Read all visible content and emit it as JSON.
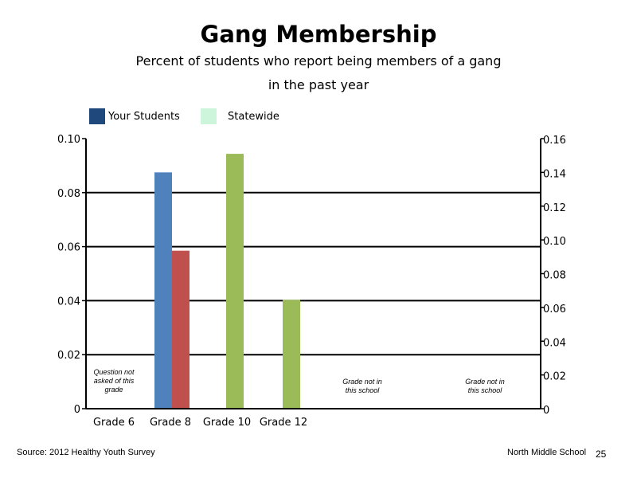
{
  "header": {
    "title": "Gang Membership",
    "subtitle_line1": "Percent of students who report being members of a gang",
    "subtitle_line2": "in the past year"
  },
  "legend": [
    {
      "label": "Your Students",
      "color": "#1f497d"
    },
    {
      "label": "Statewide",
      "color": "#ccf5dc"
    }
  ],
  "chart_data": {
    "type": "bar",
    "title": "Gang Membership",
    "categories": [
      "Grade 6",
      "Grade 8",
      "Grade 10",
      "Grade 12",
      "",
      ""
    ],
    "y_left": {
      "range": [
        0,
        0.1
      ],
      "ticks": [
        "0",
        "0.02",
        "0.04",
        "0.06",
        "0.08",
        "0.10"
      ]
    },
    "y_right": {
      "range": [
        0,
        0.16
      ],
      "ticks": [
        "0",
        "0.02",
        "0.04",
        "0.06",
        "0.08",
        "0.10",
        "0.12",
        "0.14",
        "0.16"
      ]
    },
    "gridlines": [
      0.02,
      0.04,
      0.06,
      0.08
    ],
    "bars": [
      {
        "category": "Grade 8",
        "axis": "left",
        "value": 0.0875,
        "color": "#4f81bd"
      },
      {
        "category": "Grade 8",
        "axis": "left",
        "value": 0.0585,
        "color": "#c0504d"
      },
      {
        "category": "Grade 10",
        "axis": "right",
        "value": 0.151,
        "color": "#9bbb59"
      },
      {
        "category": "Grade 12",
        "axis": "right",
        "value": 0.0645,
        "color": "#9bbb59"
      }
    ],
    "notes": [
      {
        "category_index": 0,
        "lines": [
          "Question not",
          "asked of this",
          "grade"
        ]
      },
      {
        "category_index": 4,
        "lines": [
          "Grade not in",
          "this school"
        ]
      },
      {
        "category_index": 5,
        "lines": [
          "Grade not in",
          "this school"
        ]
      }
    ]
  },
  "footer": {
    "source": "Source: 2012 Healthy Youth Survey",
    "school": "North Middle School",
    "page": "25"
  }
}
